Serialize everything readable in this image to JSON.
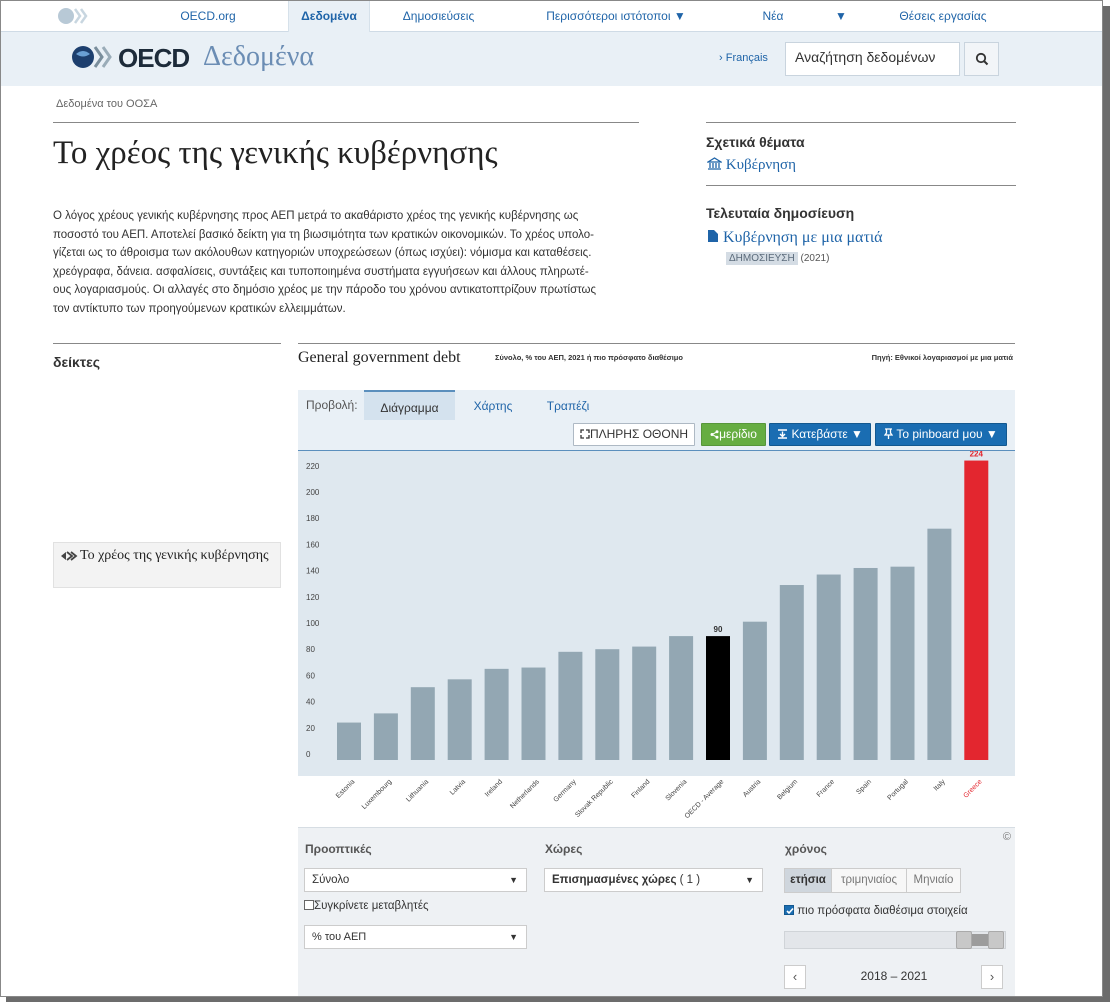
{
  "topnav": {
    "items": [
      "OECD.org",
      "Δεδομένα",
      "Δημοσιεύσεις",
      "Περισσότεροι ιστότοποι ▼",
      "Νέα",
      "▼",
      "Θέσεις εργασίας"
    ]
  },
  "header": {
    "logo_word": "OECD",
    "logo_sub": "Δεδομένα",
    "lang": "› Français",
    "search_placeholder": "Αναζήτηση δεδομένων"
  },
  "breadcrumb": "Δεδομένα του ΟΟΣΑ",
  "page": {
    "title": "Το χρέος της γενικής κυβέρνησης",
    "intro_lines": [
      "Ο λόγος χρέους γενικής κυβέρνησης προς ΑΕΠ μετρά το ακαθάριστο χρέος της γενικής κυβέρνησης ως",
      "ποσοστό του ΑΕΠ. Αποτελεί βασικό δείκτη για τη βιωσιμότητα των κρατικών οικονομικών. Το χρέος υπολο-",
      "γίζεται ως το άθροισμα των ακόλουθων κατηγοριών υποχρεώσεων (όπως ισχύει): νόμισμα και καταθέσεις.",
      "χρεόγραφα, δάνεια. ασφαλίσεις, συντάξεις και τυποποιημένα συστήματα εγγυήσεων και άλλους πληρωτέ-",
      "ους λογαριασμούς. Οι αλλαγές στο δημόσιο χρέος με την πάροδο του χρόνου αντικατοπτρίζουν πρωτίστως",
      "τον αντίκτυπο των προηγούμενων κρατικών ελλειμμάτων."
    ]
  },
  "sidebar": {
    "related_heading": "Σχετικά θέματα",
    "related_link": "Κυβέρνηση",
    "latest_heading": "Τελευταία δημοσίευση",
    "latest_link": "Κυβέρνηση με μια ματιά",
    "latest_tag": "ΔΗΜΟΣΙΕΥΣΗ",
    "latest_year": "(2021)"
  },
  "indicators": {
    "heading": "δείκτες",
    "item": "Το χρέος της γενικής κυβέρνησης"
  },
  "chart_header": {
    "title": "General government debt",
    "subtitle": "Σύνολο, % του ΑΕΠ, 2021 ή πιο πρόσφατο διαθέσιμο",
    "source": "Πηγή: Εθνικοί λογαριασμοί με μια ματιά"
  },
  "panel": {
    "view_label": "Προβολή:",
    "tabs": [
      "Διάγραμμα",
      "Χάρτης",
      "Τραπέζι"
    ],
    "buttons": {
      "fullscreen": "ΠΛΗΡΗΣ ΟΘΟΝΗ",
      "share": "μερίδιο",
      "download": "Κατεβάστε ▼",
      "pinboard": "Το pinboard μου ▼"
    }
  },
  "chart_data": {
    "type": "bar",
    "title": "General government debt",
    "ylim": [
      0,
      230
    ],
    "yticks": [
      0,
      20,
      40,
      60,
      80,
      100,
      120,
      140,
      160,
      180,
      200,
      220
    ],
    "categories": [
      "Estonia",
      "Luxembourg",
      "Lithuania",
      "Latvia",
      "Ireland",
      "Netherlands",
      "Germany",
      "Slovak Republic",
      "Finland",
      "Slovenia",
      "OECD - Average",
      "Austria",
      "Belgium",
      "France",
      "Spain",
      "Portugal",
      "Italy",
      "Greece"
    ],
    "values": [
      24,
      31,
      51,
      57,
      65,
      66,
      78,
      80,
      82,
      90,
      90,
      101,
      129,
      137,
      142,
      143,
      172,
      224
    ],
    "highlight": {
      "OECD - Average": "#000000",
      "Greece": "#e3262f"
    },
    "bar_color": "#93a7b3",
    "data_labels": {
      "OECD - Average": "90",
      "Greece": "224"
    },
    "grid": false
  },
  "controls": {
    "perspectives_heading": "Προοπτικές",
    "perspective_value": "Σύνολο",
    "compare_label": "Συγκρίνετε μεταβλητές",
    "unit_value": "% του ΑΕΠ",
    "countries_heading": "Χώρες",
    "countries_value": "Επισημασμένες χώρες",
    "countries_count": "( 1 )",
    "time_heading": "χρόνος",
    "freq": [
      "ετήσια",
      "τριμηνιαίος",
      "Μηνιαίο"
    ],
    "latest_label": "πιο πρόσφατα διαθέσιμα στοιχεία",
    "range_label": "2018 – 2021",
    "copyright": "©"
  }
}
